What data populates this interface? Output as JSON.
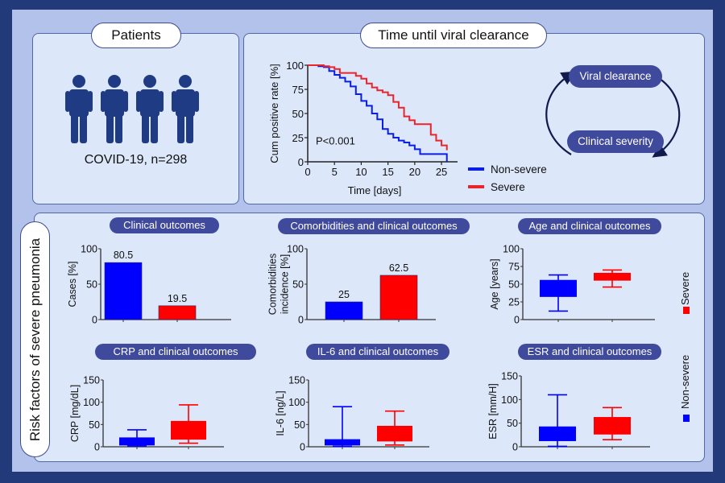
{
  "patients": {
    "title": "Patients",
    "caption": "COVID-19, n=298",
    "icon_count": 4
  },
  "viral_clearance": {
    "title": "Time until viral clearance",
    "cycle": {
      "top": "Viral clearance",
      "bottom": "Clinical severity"
    },
    "legend": [
      {
        "label": "Non-severe",
        "color": "#0a1ee6"
      },
      {
        "label": "Severe",
        "color": "#e8242c"
      }
    ]
  },
  "risk_factors": {
    "side_label": "Risk factors of severe pneumonia",
    "legend": [
      {
        "label": "Severe",
        "color": "#ff0000"
      },
      {
        "label": "Non-severe",
        "color": "#0000ff"
      }
    ]
  },
  "colors": {
    "non_severe": "#0000ff",
    "severe": "#ff0000",
    "navy": "#233a7a",
    "pill": "#3f4a9c"
  },
  "chart_data": [
    {
      "id": "km",
      "type": "line",
      "title": "Time until viral clearance",
      "xlabel": "Time [days]",
      "ylabel": "Cum positive rate [%]",
      "xlim": [
        0,
        28
      ],
      "ylim": [
        0,
        100
      ],
      "xticks": [
        0,
        5,
        10,
        15,
        20,
        25
      ],
      "yticks": [
        0,
        25,
        50,
        75,
        100
      ],
      "annotation": "P<0.001",
      "series": [
        {
          "name": "Non-severe",
          "color": "#0a1ee6",
          "x": [
            0,
            2,
            3,
            4,
            5,
            6,
            7,
            8,
            9,
            10,
            11,
            12,
            13,
            14,
            15,
            16,
            17,
            18,
            19,
            20,
            21,
            26,
            26
          ],
          "y": [
            100,
            99,
            98,
            94,
            90,
            87,
            83,
            78,
            70,
            63,
            58,
            50,
            44,
            34,
            29,
            25,
            22,
            20,
            17,
            13,
            8,
            8,
            0
          ]
        },
        {
          "name": "Severe",
          "color": "#e8242c",
          "x": [
            0,
            3,
            4,
            5,
            6,
            9,
            10,
            11,
            12,
            13,
            14,
            15,
            16,
            17,
            18,
            19,
            20,
            23,
            24,
            25,
            26
          ],
          "y": [
            100,
            99,
            98,
            96,
            92,
            89,
            86,
            81,
            77,
            74,
            72,
            69,
            62,
            56,
            47,
            43,
            39,
            28,
            22,
            17,
            12
          ]
        }
      ]
    },
    {
      "id": "clinical-outcomes",
      "type": "bar",
      "title": "Clinical outcomes",
      "ylabel": "Cases [%]",
      "ylim": [
        0,
        100
      ],
      "yticks": [
        0,
        50,
        100
      ],
      "categories": [
        "Non-severe",
        "Severe"
      ],
      "values": [
        80.5,
        19.5
      ],
      "labels": [
        "80.5",
        "19.5"
      ]
    },
    {
      "id": "comorbidities",
      "type": "bar",
      "title": "Comorbidities and clinical outcomes",
      "ylabel": "Comorbidities incidence [%]",
      "ylabel_lines": [
        "Comorbidities",
        "incidence [%]"
      ],
      "ylim": [
        0,
        100
      ],
      "yticks": [
        0,
        50,
        100
      ],
      "categories": [
        "Non-severe",
        "Severe"
      ],
      "values": [
        25,
        62.5
      ],
      "labels": [
        "25",
        "62.5"
      ]
    },
    {
      "id": "age",
      "type": "box",
      "title": "Age and clinical outcomes",
      "ylabel": "Age [years]",
      "ylim": [
        0,
        100
      ],
      "yticks": [
        0,
        25,
        50,
        75,
        100
      ],
      "categories": [
        "Non-severe",
        "Severe"
      ],
      "boxes": [
        {
          "min": 12,
          "q1": 32,
          "q3": 56,
          "max": 63
        },
        {
          "min": 46,
          "q1": 55,
          "q3": 66,
          "max": 70
        }
      ]
    },
    {
      "id": "crp",
      "type": "box",
      "title": "CRP and clinical outcomes",
      "ylabel": "CRP [mg/dL]",
      "ylim": [
        0,
        150
      ],
      "yticks": [
        0,
        50,
        100,
        150
      ],
      "categories": [
        "Non-severe",
        "Severe"
      ],
      "boxes": [
        {
          "min": 2,
          "q1": 3,
          "q3": 21,
          "max": 38
        },
        {
          "min": 8,
          "q1": 16,
          "q3": 58,
          "max": 94
        }
      ]
    },
    {
      "id": "il6",
      "type": "box",
      "title": "IL-6 and clinical outcomes",
      "ylabel": "IL-6 [ng/L]",
      "ylim": [
        0,
        150
      ],
      "yticks": [
        0,
        50,
        100,
        150
      ],
      "categories": [
        "Non-severe",
        "Severe"
      ],
      "boxes": [
        {
          "min": 1,
          "q1": 3,
          "q3": 17,
          "max": 90
        },
        {
          "min": 4,
          "q1": 12,
          "q3": 47,
          "max": 80
        }
      ]
    },
    {
      "id": "esr",
      "type": "box",
      "title": "ESR and clinical outcomes",
      "ylabel": "ESR [mm/H]",
      "ylim": [
        0,
        150
      ],
      "yticks": [
        0,
        50,
        100,
        150
      ],
      "categories": [
        "Non-severe",
        "Severe"
      ],
      "boxes": [
        {
          "min": 1,
          "q1": 12,
          "q3": 43,
          "max": 110
        },
        {
          "min": 15,
          "q1": 26,
          "q3": 63,
          "max": 83
        }
      ]
    }
  ]
}
